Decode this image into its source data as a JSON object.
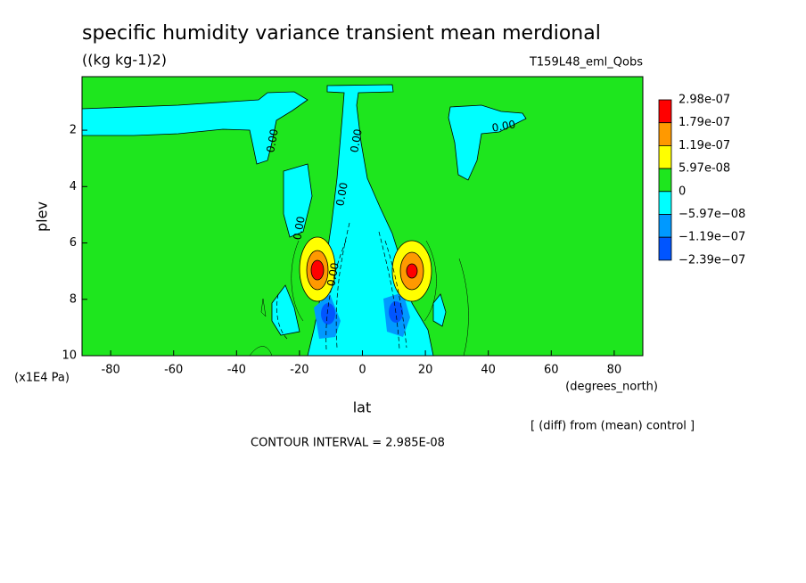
{
  "chart_data": {
    "type": "contour",
    "title": "specific humidity variance transient mean merdional",
    "subtitle": "((kg kg-1)2)",
    "run_label": "T159L48_eml_Qobs",
    "x_label": "lat",
    "x_units": "(degrees_north)",
    "y_label": "plev",
    "y_units": "(x1E4 Pa)",
    "note": "[ (diff) from (mean) control ]",
    "contour_interval": "CONTOUR INTERVAL = 2.985E-08",
    "contour_labels": [
      "0.00",
      "0.00",
      "0.00",
      "0.00",
      "0.00",
      "0.00"
    ],
    "xlim": [
      -89.1,
      89.1
    ],
    "xticks": [
      -80,
      -60,
      -40,
      -20,
      0,
      20,
      40,
      60,
      80
    ],
    "ylim": [
      10,
      0.1
    ],
    "yticks": [
      2,
      4,
      6,
      8,
      10
    ],
    "levels": [
      {
        "value": 2.98e-07,
        "label": "2.98e-07"
      },
      {
        "value": 1.79e-07,
        "label": "1.79e-07"
      },
      {
        "value": 1.19e-07,
        "label": "1.19e-07"
      },
      {
        "value": 5.97e-08,
        "label": "5.97e-08"
      },
      0,
      {
        "value": -5.97e-08,
        "label": "−5.97e−08"
      },
      {
        "value": -1.19e-07,
        "label": "−1.19e−07"
      },
      {
        "value": -2.39e-07,
        "label": "−2.39e−07"
      }
    ],
    "colors": [
      "#ff0000",
      "#ff9900",
      "#ffff00",
      "#1ee61e",
      "#00ffff",
      "#0099ff",
      "#0055ff"
    ]
  }
}
